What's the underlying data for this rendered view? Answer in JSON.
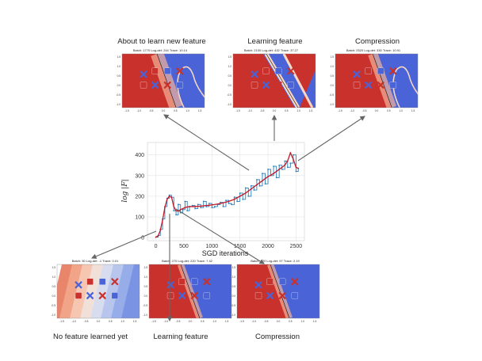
{
  "chart_data": [
    {
      "type": "line",
      "xlabel": "SGD iterations",
      "ylabel": "log |F|",
      "xlim": [
        -150,
        2650
      ],
      "ylim": [
        -15,
        460
      ],
      "x_ticks": [
        0,
        500,
        1000,
        1500,
        2000,
        2500
      ],
      "y_ticks": [
        0,
        100,
        200,
        300,
        400
      ],
      "grid": true,
      "series": [
        {
          "style": "raw-steps",
          "color": "#2d7fb8",
          "x": [
            0,
            40,
            80,
            120,
            160,
            200,
            240,
            280,
            320,
            360,
            400,
            440,
            480,
            520,
            560,
            600,
            650,
            700,
            750,
            800,
            850,
            900,
            950,
            1000,
            1050,
            1100,
            1150,
            1200,
            1250,
            1300,
            1350,
            1400,
            1450,
            1500,
            1550,
            1600,
            1650,
            1700,
            1750,
            1800,
            1850,
            1900,
            1950,
            2000,
            2050,
            2100,
            2150,
            2200,
            2250,
            2300,
            2350,
            2400,
            2450,
            2500,
            2540
          ],
          "y": [
            2,
            10,
            40,
            90,
            150,
            190,
            205,
            195,
            130,
            110,
            160,
            120,
            135,
            175,
            130,
            150,
            155,
            140,
            160,
            145,
            175,
            150,
            165,
            145,
            150,
            160,
            170,
            150,
            180,
            165,
            160,
            195,
            175,
            215,
            185,
            240,
            200,
            250,
            230,
            280,
            250,
            310,
            260,
            330,
            300,
            345,
            290,
            350,
            330,
            370,
            340,
            360,
            400,
            320,
            335
          ]
        },
        {
          "style": "smoothed",
          "color": "#c2182b",
          "x": [
            0,
            40,
            80,
            120,
            160,
            200,
            240,
            280,
            320,
            360,
            400,
            440,
            480,
            520,
            560,
            600,
            700,
            800,
            900,
            1000,
            1100,
            1200,
            1300,
            1400,
            1500,
            1600,
            1700,
            1800,
            1900,
            2000,
            2100,
            2200,
            2300,
            2350,
            2400,
            2450,
            2500,
            2540
          ],
          "y": [
            2,
            8,
            35,
            85,
            145,
            185,
            200,
            195,
            150,
            130,
            128,
            135,
            140,
            145,
            148,
            150,
            150,
            152,
            155,
            158,
            162,
            168,
            175,
            185,
            200,
            215,
            235,
            255,
            275,
            295,
            310,
            330,
            350,
            370,
            410,
            380,
            340,
            335
          ]
        }
      ]
    },
    {
      "type": "heatmap",
      "title": "Batch: 1770 Log-det: 244 Trace: 10.14",
      "caption": "About to learn new feature",
      "x_ticks": [
        "-1.5",
        "-1.0",
        "-0.5",
        "0.0",
        "0.5",
        "1.0",
        "1.5"
      ],
      "y_ticks": [
        "1.5",
        "1.0",
        "0.5",
        "0.0",
        "-0.5",
        "-1.0"
      ]
    },
    {
      "type": "heatmap",
      "title": "Batch: 2100 Log-det: 432 Trace: 37.27",
      "caption": "Learning feature",
      "x_ticks": [
        "-1.5",
        "-1.0",
        "-0.5",
        "0.0",
        "0.5",
        "1.0",
        "1.5"
      ],
      "y_ticks": [
        "1.5",
        "1.0",
        "0.5",
        "0.0",
        "-0.5",
        "-1.0"
      ]
    },
    {
      "type": "heatmap",
      "title": "Batch: 2520 Log-det: 330 Trace: 10.91",
      "caption": "Compression",
      "x_ticks": [
        "-1.5",
        "-1.0",
        "-0.5",
        "0.0",
        "0.5",
        "1.0",
        "1.5"
      ],
      "y_ticks": [
        "1.5",
        "1.0",
        "0.5",
        "0.0",
        "-0.5",
        "-1.0"
      ]
    },
    {
      "type": "heatmap",
      "title": "Batch: 30 Log-det: -1 Trace: 0.01",
      "caption": "No feature learned yet",
      "x_ticks": [
        "-1.5",
        "-1.0",
        "-0.5",
        "0.0",
        "0.5",
        "1.0",
        "1.5"
      ],
      "y_ticks": [
        "1.5",
        "1.0",
        "0.5",
        "0.0",
        "-0.5",
        "-1.0"
      ]
    },
    {
      "type": "heatmap",
      "title": "Batch: 270 Log-det: 220 Trace: 7.42",
      "caption": "Learning feature",
      "x_ticks": [
        "-1.5",
        "-1.0",
        "-0.5",
        "0.0",
        "0.5",
        "1.0",
        "1.5"
      ],
      "y_ticks": [
        "1.5",
        "1.0",
        "0.5",
        "0.0",
        "-0.5",
        "-1.0"
      ]
    },
    {
      "type": "heatmap",
      "title": "Batch: 420 Log-det: 97 Trace: 2.19",
      "caption": "Compression",
      "x_ticks": [
        "-1.5",
        "-1.0",
        "-0.5",
        "0.0",
        "0.5",
        "1.0",
        "1.5"
      ],
      "y_ticks": [
        "1.5",
        "1.0",
        "0.5",
        "0.0",
        "-0.5",
        "-1.0"
      ]
    }
  ],
  "colors": {
    "red_region": "#c8312c",
    "blue_region": "#4a63d6",
    "raw_line": "#2d7fb8",
    "smoothed_line": "#c2182b",
    "arrow": "#666666"
  }
}
